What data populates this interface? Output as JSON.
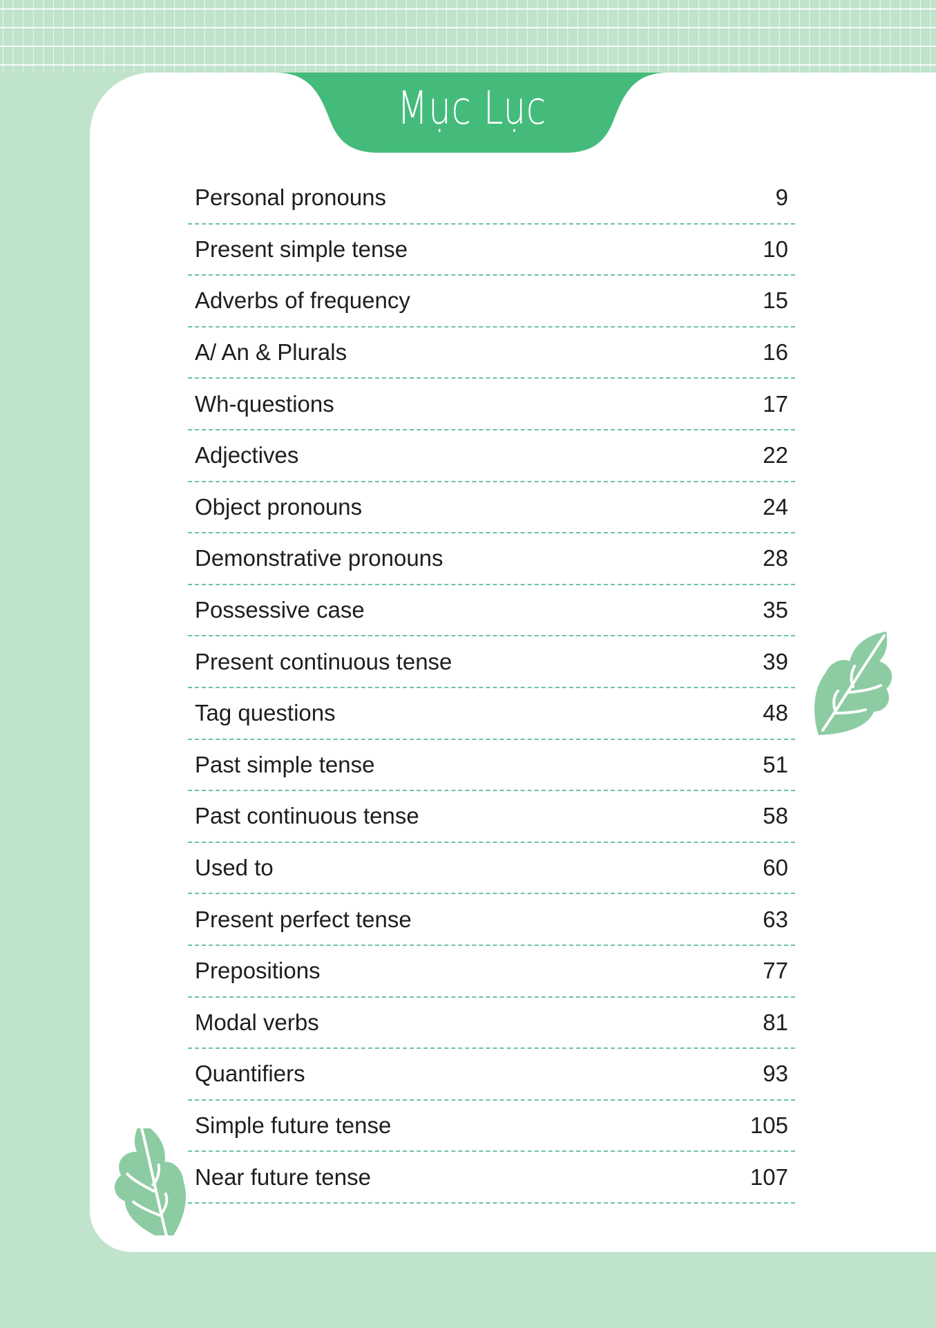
{
  "title": "Mục Lục",
  "colors": {
    "background": "#c0e3cb",
    "tab": "#45bb7b",
    "leaf": "#8dcca3",
    "divider": "#6cc39a"
  },
  "toc": [
    {
      "label": "Personal pronouns",
      "page": "9"
    },
    {
      "label": "Present simple tense",
      "page": "10"
    },
    {
      "label": "Adverbs of frequency",
      "page": "15"
    },
    {
      "label": "A/ An & Plurals",
      "page": "16"
    },
    {
      "label": "Wh-questions",
      "page": "17"
    },
    {
      "label": "Adjectives",
      "page": "22"
    },
    {
      "label": "Object pronouns",
      "page": "24"
    },
    {
      "label": "Demonstrative pronouns",
      "page": "28"
    },
    {
      "label": "Possessive case",
      "page": "35"
    },
    {
      "label": "Present continuous tense",
      "page": "39"
    },
    {
      "label": "Tag questions",
      "page": "48"
    },
    {
      "label": "Past simple tense",
      "page": "51"
    },
    {
      "label": "Past continuous tense",
      "page": "58"
    },
    {
      "label": "Used to",
      "page": "60"
    },
    {
      "label": "Present perfect tense",
      "page": "63"
    },
    {
      "label": "Prepositions",
      "page": "77"
    },
    {
      "label": "Modal verbs",
      "page": "81"
    },
    {
      "label": "Quantifiers",
      "page": "93"
    },
    {
      "label": "Simple future tense",
      "page": "105"
    },
    {
      "label": "Near future tense",
      "page": "107"
    }
  ]
}
